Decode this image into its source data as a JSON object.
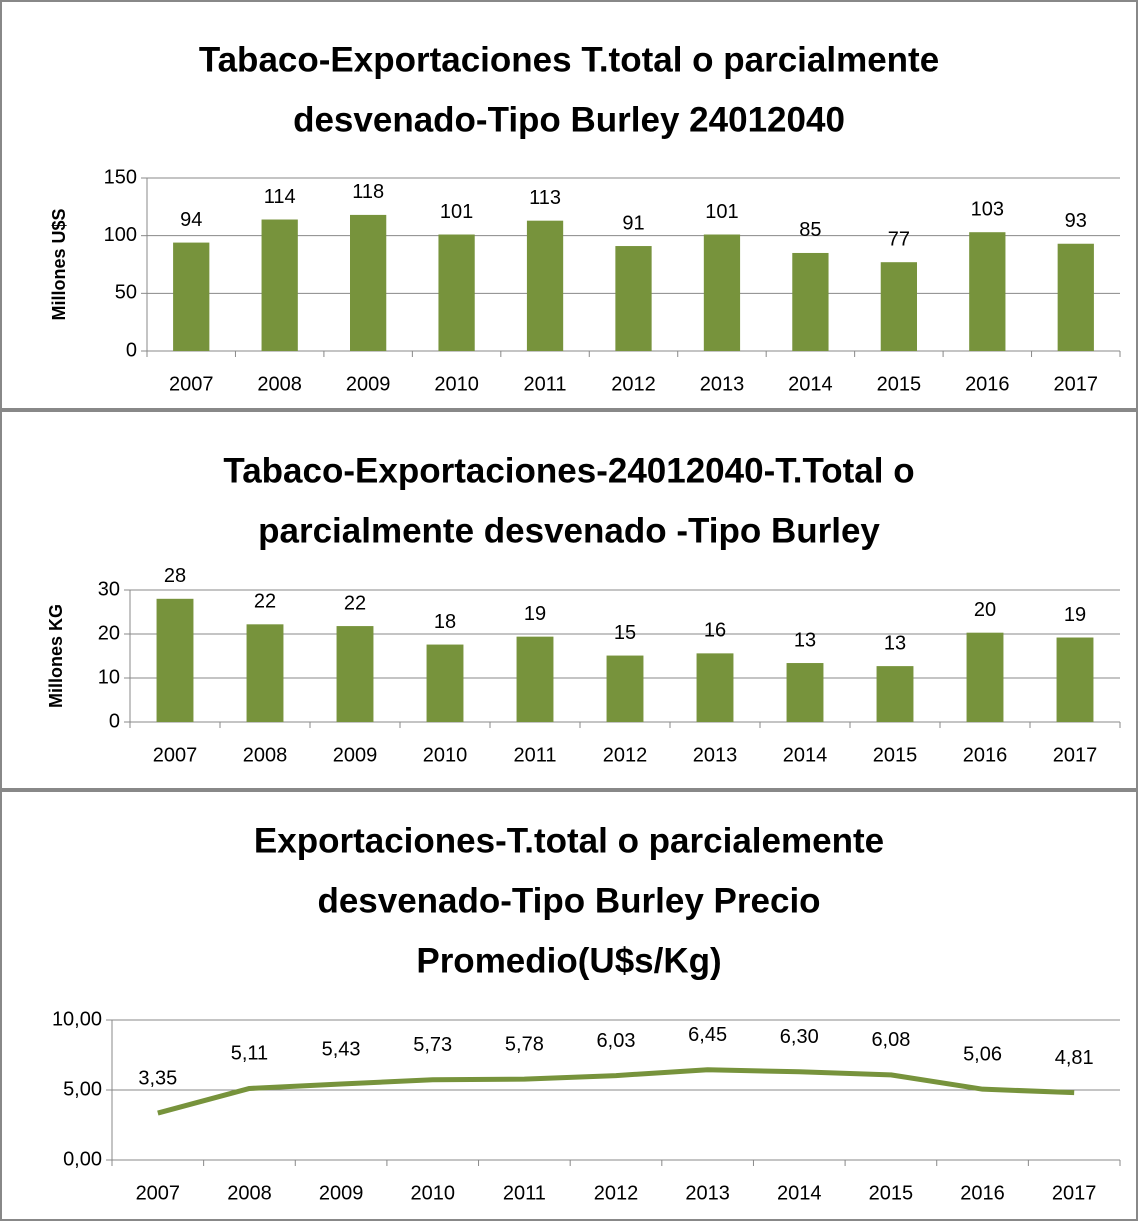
{
  "chart_data": [
    {
      "type": "bar",
      "title": [
        "Tabaco-Exportaciones T.total o parcialmente",
        "desvenado-Tipo Burley 24012040"
      ],
      "y_label": "Millones U$S",
      "categories": [
        "2007",
        "2008",
        "2009",
        "2010",
        "2011",
        "2012",
        "2013",
        "2014",
        "2015",
        "2016",
        "2017"
      ],
      "values": [
        94,
        114,
        118,
        101,
        113,
        91,
        101,
        85,
        77,
        103,
        93
      ],
      "color": "#77933c",
      "ylim": [
        0,
        150
      ],
      "yticks": [
        0,
        50,
        100,
        150
      ],
      "grid": true
    },
    {
      "type": "bar",
      "title": [
        "Tabaco-Exportaciones-24012040-T.Total o",
        "parcialmente desvenado -Tipo Burley"
      ],
      "y_label": "Millones KG",
      "categories": [
        "2007",
        "2008",
        "2009",
        "2010",
        "2011",
        "2012",
        "2013",
        "2014",
        "2015",
        "2016",
        "2017"
      ],
      "values": [
        28,
        22.2,
        21.8,
        17.6,
        19.4,
        15.1,
        15.6,
        13.4,
        12.7,
        20.3,
        19.2
      ],
      "value_labels": [
        "28",
        "22",
        "22",
        "18",
        "19",
        "15",
        "16",
        "13",
        "13",
        "20",
        "19"
      ],
      "color": "#77933c",
      "ylim": [
        0,
        30
      ],
      "yticks": [
        0,
        10,
        20,
        30
      ],
      "grid": true
    },
    {
      "type": "line",
      "title": [
        "Exportaciones-T.total o parcialemente",
        "desvenado-Tipo Burley Precio",
        "Promedio(U$s/Kg)"
      ],
      "categories": [
        "2007",
        "2008",
        "2009",
        "2010",
        "2011",
        "2012",
        "2013",
        "2014",
        "2015",
        "2016",
        "2017"
      ],
      "values": [
        3.35,
        5.11,
        5.43,
        5.73,
        5.78,
        6.03,
        6.45,
        6.3,
        6.08,
        5.06,
        4.81
      ],
      "value_labels": [
        "3,35",
        "5,11",
        "5,43",
        "5,73",
        "5,78",
        "6,03",
        "6,45",
        "6,30",
        "6,08",
        "5,06",
        "4,81"
      ],
      "color": "#77933c",
      "ylim": [
        0,
        10
      ],
      "yticks": [
        {
          "value": 0,
          "label": "0,00"
        },
        {
          "value": 5,
          "label": "5,00"
        },
        {
          "value": 10,
          "label": "10,00"
        }
      ],
      "grid": true
    }
  ]
}
